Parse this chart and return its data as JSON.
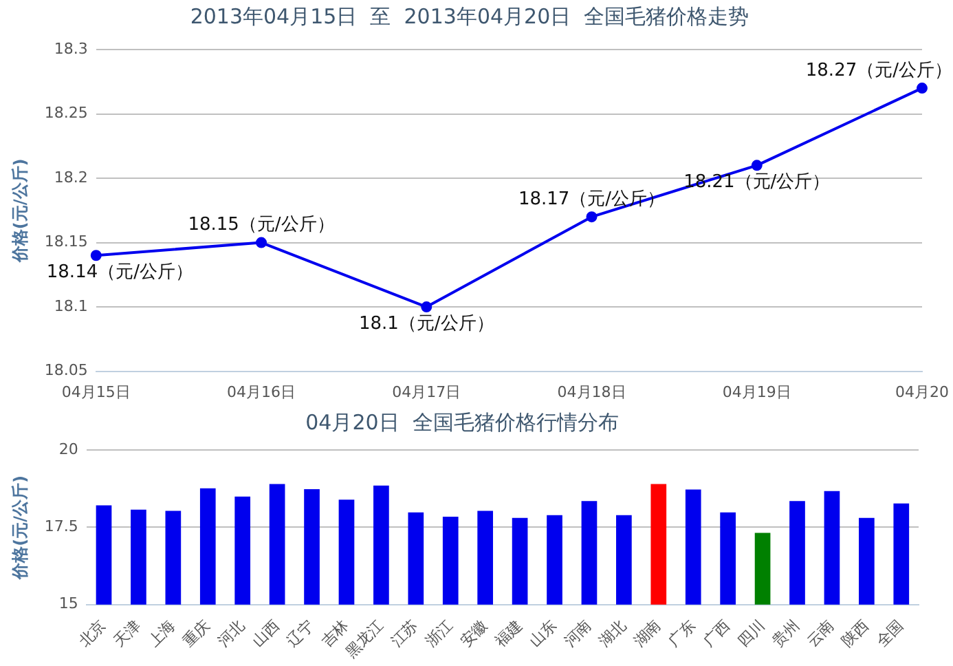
{
  "chart_data": [
    {
      "type": "line",
      "title": "2013年04月15日  至  2013年04月20日  全国毛猪价格走势",
      "ylabel": "价格(元/公斤)",
      "categories": [
        "04月15日",
        "04月16日",
        "04月17日",
        "04月18日",
        "04月19日",
        "04月20"
      ],
      "series": [
        {
          "color": "#0000ee",
          "values": [
            18.14,
            18.15,
            18.1,
            18.17,
            18.21,
            18.27
          ],
          "value_labels": [
            "18.14（元/公斤）",
            "18.15（元/公斤）",
            "18.1（元/公斤）",
            "18.17（元/公斤）",
            "18.21（元/公斤）",
            "18.27（元/公斤）"
          ]
        }
      ],
      "ylim": [
        18.05,
        18.3
      ],
      "yticks": [
        18.05,
        18.1,
        18.15,
        18.2,
        18.25,
        18.3
      ],
      "grid": "y",
      "legend": false,
      "marker": "circle",
      "line_style": "solid"
    },
    {
      "type": "bar",
      "title": "04月20日  全国毛猪价格行情分布",
      "ylabel": "价格(元/公斤)",
      "categories": [
        "北京",
        "天津",
        "上海",
        "重庆",
        "河北",
        "山西",
        "辽宁",
        "吉林",
        "黑龙江",
        "江苏",
        "浙江",
        "安徽",
        "福建",
        "山东",
        "河南",
        "湖北",
        "湖南",
        "广东",
        "广西",
        "四川",
        "贵州",
        "云南",
        "陕西",
        "全国"
      ],
      "values": [
        18.21,
        18.07,
        18.03,
        18.76,
        18.49,
        18.9,
        18.73,
        18.39,
        18.85,
        17.98,
        17.84,
        18.03,
        17.8,
        17.89,
        18.35,
        17.89,
        18.9,
        18.72,
        17.98,
        17.32,
        18.35,
        18.67,
        17.8,
        18.27
      ],
      "colors": [
        "#0000ee",
        "#0000ee",
        "#0000ee",
        "#0000ee",
        "#0000ee",
        "#0000ee",
        "#0000ee",
        "#0000ee",
        "#0000ee",
        "#0000ee",
        "#0000ee",
        "#0000ee",
        "#0000ee",
        "#0000ee",
        "#0000ee",
        "#0000ee",
        "#ff0000",
        "#0000ee",
        "#0000ee",
        "#008000",
        "#0000ee",
        "#0000ee",
        "#0000ee",
        "#0000ee"
      ],
      "ylim": [
        15,
        20
      ],
      "yticks": [
        15,
        17.5,
        20
      ],
      "grid": "y",
      "legend": false
    }
  ]
}
